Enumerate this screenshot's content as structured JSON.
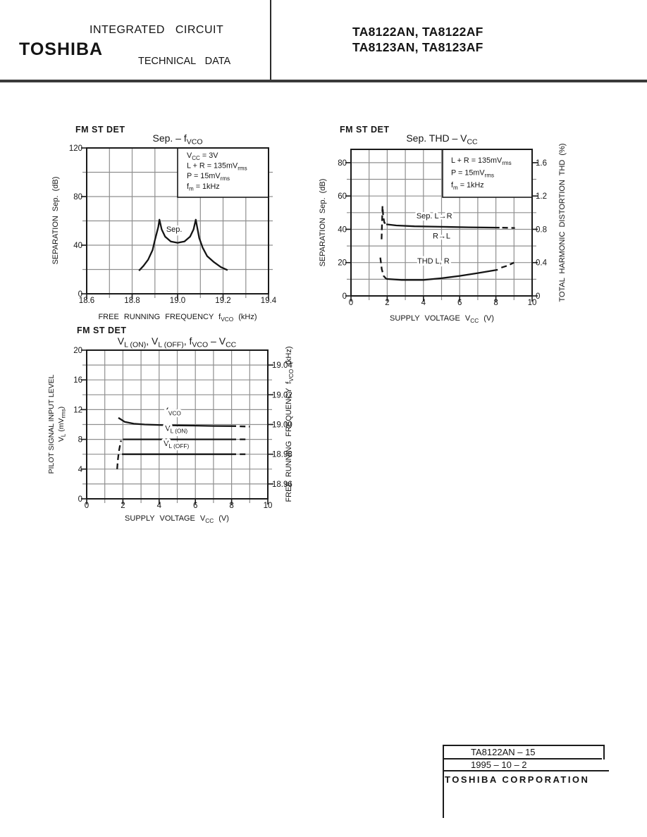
{
  "header": {
    "brand": "TOSHIBA",
    "line1": "INTEGRATED CIRCUIT",
    "line2": "TECHNICAL DATA",
    "part_numbers_line1": "TA8122AN, TA8122AF",
    "part_numbers_line2": "TA8123AN, TA8123AF"
  },
  "footer": {
    "doc_number": "TA8122AN – 15",
    "date": "1995 – 10 – 2",
    "company": "TOSHIBA CORPORATION"
  },
  "chart_data": [
    {
      "id": "separation-vs-fvco",
      "type": "line",
      "corner_label": "FM ST DET",
      "title": "Sep. – f~VCO~",
      "x_axis": {
        "label": "FREE RUNNING FREQUENCY f~VCO~ (kHz)",
        "min": 18.6,
        "max": 19.4,
        "grid_step": 0.1,
        "tick_values": [
          18.6,
          18.8,
          19.0,
          19.2,
          19.4
        ],
        "tick_labels": [
          "18.6",
          "18.8",
          "19.0",
          "19.2",
          "19.4"
        ]
      },
      "y_axis": {
        "label": "SEPARATION Sep. (dB)",
        "min": 0,
        "max": 120,
        "grid_step": 20,
        "tick_values": [
          0,
          40,
          80,
          120
        ],
        "tick_labels": [
          "0",
          "40",
          "80",
          "120"
        ]
      },
      "conditions": [
        "V~CC~ = 3V",
        "L + R = 135mV~rms~",
        "P = 15mV~rms~",
        "f~m~ = 1kHz"
      ],
      "series": [
        {
          "name": "sep",
          "style": "solid",
          "points": [
            [
              18.83,
              19
            ],
            [
              18.85,
              23
            ],
            [
              18.87,
              28
            ],
            [
              18.89,
              36
            ],
            [
              18.9,
              44
            ],
            [
              18.915,
              55
            ],
            [
              18.92,
              61
            ],
            [
              18.93,
              53
            ],
            [
              18.945,
              47
            ],
            [
              18.97,
              43
            ],
            [
              19.0,
              42
            ],
            [
              19.03,
              43
            ],
            [
              19.055,
              47
            ],
            [
              19.07,
              53
            ],
            [
              19.08,
              61
            ],
            [
              19.086,
              55
            ],
            [
              19.095,
              46
            ],
            [
              19.11,
              38
            ],
            [
              19.13,
              31
            ],
            [
              19.16,
              26
            ],
            [
              19.19,
              22
            ],
            [
              19.22,
              19.5
            ]
          ]
        }
      ],
      "curve_labels": [
        {
          "text": "Sep.",
          "x": 18.985,
          "y": 51
        }
      ]
    },
    {
      "id": "sep-thd-vs-vcc",
      "type": "line",
      "corner_label": "FM ST DET",
      "title": "Sep. THD – V~CC~",
      "x_axis": {
        "label": "SUPPLY VOLTAGE V~CC~ (V)",
        "min": 0,
        "max": 10,
        "grid_step": 1,
        "tick_values": [
          0,
          2,
          4,
          6,
          8,
          10
        ],
        "tick_labels": [
          "0",
          "2",
          "4",
          "6",
          "8",
          "10"
        ]
      },
      "y_axis": {
        "label": "SEPARATION Sep. (dB)",
        "min": 0,
        "max": 88,
        "grid_step": 10,
        "tick_values": [
          0,
          20,
          40,
          60,
          80
        ],
        "tick_labels": [
          "0",
          "20",
          "40",
          "60",
          "80"
        ]
      },
      "y2_axis": {
        "label": "TOTAL HARMONIC DISTORTION THD (%)",
        "tick_labels": [
          "0",
          "0.4",
          "0.8",
          "1.2",
          "1.6"
        ],
        "tick_left_values": [
          0,
          20,
          40,
          60,
          80
        ]
      },
      "conditions": [
        "L + R = 135mV~rms~",
        "P = 15mV~rms~",
        "f~m~ = 1kHz"
      ],
      "series": [
        {
          "name": "sep-lr-onset",
          "style": "dashed",
          "points": [
            [
              1.69,
              34
            ],
            [
              1.72,
              46
            ],
            [
              1.74,
              54
            ],
            [
              1.78,
              48
            ],
            [
              1.84,
              44
            ],
            [
              1.95,
              43
            ]
          ]
        },
        {
          "name": "sep-lr",
          "style": "solid",
          "points": [
            [
              1.95,
              43
            ],
            [
              2.5,
              42.3
            ],
            [
              3.5,
              41.8
            ],
            [
              5,
              41.5
            ],
            [
              6.5,
              41.2
            ],
            [
              8.2,
              41
            ]
          ]
        },
        {
          "name": "sep-lr-tail",
          "style": "dashed",
          "points": [
            [
              8.35,
              41
            ],
            [
              9.05,
              40.8
            ]
          ]
        },
        {
          "name": "thd-onset",
          "style": "dashed",
          "points": [
            [
              1.62,
              23
            ],
            [
              1.7,
              16
            ],
            [
              1.8,
              12
            ],
            [
              1.95,
              10.2
            ]
          ]
        },
        {
          "name": "thd",
          "style": "solid",
          "points": [
            [
              1.95,
              10.2
            ],
            [
              2.8,
              9.6
            ],
            [
              4,
              9.6
            ],
            [
              5,
              10.6
            ],
            [
              6,
              12
            ],
            [
              7,
              13.7
            ],
            [
              8.1,
              15.7
            ]
          ]
        },
        {
          "name": "thd-tail",
          "style": "dashed",
          "points": [
            [
              8.3,
              17
            ],
            [
              8.65,
              18.2
            ],
            [
              9.0,
              20
            ]
          ]
        }
      ],
      "curve_labels": [
        {
          "text": "Sep. L→R",
          "x": 4.6,
          "y": 46.5
        },
        {
          "text": "R→L",
          "x": 5.0,
          "y": 34.5
        },
        {
          "text": "THD L, R",
          "x": 4.55,
          "y": 19.5
        }
      ]
    },
    {
      "id": "vlon-vloff-fvco-vs-vcc",
      "type": "line",
      "corner_label": "FM ST DET",
      "title": "V~L (ON)~, V~L (OFF)~, f~VCO~ – V~CC~",
      "x_axis": {
        "label": "SUPPLY VOLTAGE V~CC~ (V)",
        "min": 0,
        "max": 10,
        "grid_step": 1,
        "tick_values": [
          0,
          2,
          4,
          6,
          8,
          10
        ],
        "tick_labels": [
          "0",
          "2",
          "4",
          "6",
          "8",
          "10"
        ]
      },
      "y_axis": {
        "label_lines": [
          "PILOT SIGNAL INPUT LEVEL",
          "V~L~ (mV~rms~)"
        ],
        "min": 0,
        "max": 20,
        "grid_step": 2,
        "tick_values": [
          0,
          4,
          8,
          12,
          16,
          20
        ],
        "tick_labels": [
          "0",
          "4",
          "8",
          "12",
          "16",
          "20"
        ]
      },
      "y2_axis": {
        "label": "FREE RUNNING FREQUENCY f~VCO~ (kHz)",
        "tick_labels": [
          "18.96",
          "18.98",
          "19.00",
          "19.02",
          "19.04"
        ],
        "tick_left_values": [
          2,
          6,
          10,
          14,
          18
        ]
      },
      "series": [
        {
          "name": "fvco",
          "style": "solid",
          "points": [
            [
              1.75,
              10.9
            ],
            [
              2.1,
              10.35
            ],
            [
              2.6,
              10.1
            ],
            [
              3.2,
              10.0
            ],
            [
              4.5,
              9.9
            ],
            [
              6,
              9.85
            ],
            [
              7,
              9.8
            ],
            [
              8.25,
              9.78
            ]
          ]
        },
        {
          "name": "fvco-tail",
          "style": "dashed",
          "points": [
            [
              8.45,
              9.75
            ],
            [
              9.0,
              9.72
            ]
          ]
        },
        {
          "name": "vl-on",
          "style": "solid",
          "points": [
            [
              2.0,
              8
            ],
            [
              8.25,
              8
            ]
          ]
        },
        {
          "name": "vl-on-tail",
          "style": "dashed",
          "points": [
            [
              8.45,
              8
            ],
            [
              8.95,
              8
            ]
          ]
        },
        {
          "name": "vl-off",
          "style": "solid",
          "points": [
            [
              1.95,
              6
            ],
            [
              8.25,
              6
            ]
          ]
        },
        {
          "name": "vl-off-tail",
          "style": "dashed",
          "points": [
            [
              8.45,
              6
            ],
            [
              8.95,
              6
            ]
          ]
        },
        {
          "name": "vl-threshold",
          "style": "dashed",
          "points": [
            [
              1.68,
              4
            ],
            [
              1.72,
              5.2
            ],
            [
              1.78,
              6.4
            ],
            [
              1.84,
              7.2
            ],
            [
              1.9,
              7.85
            ]
          ]
        }
      ],
      "curve_labels": [
        {
          "text": "f~VCO~",
          "x": 4.8,
          "y": 11.5
        },
        {
          "text": "V~L (ON)~",
          "x": 4.95,
          "y": 9.15
        },
        {
          "text": "V~L (OFF)~",
          "x": 4.95,
          "y": 7.1
        }
      ]
    }
  ]
}
